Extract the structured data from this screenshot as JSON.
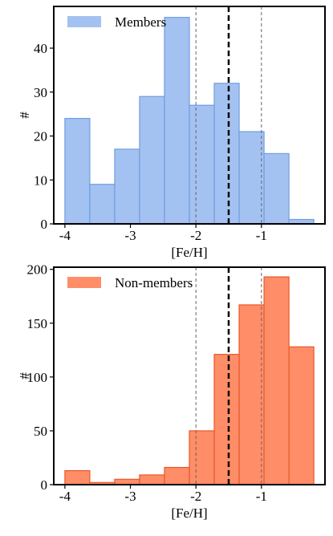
{
  "chart_data": [
    {
      "type": "histogram",
      "xlabel": "[Fe/H]",
      "ylabel": "#",
      "legend": "upper left",
      "bins": [
        -4,
        -3.62,
        -3.24,
        -2.86,
        -2.48,
        -2.1,
        -1.72,
        -1.34,
        -0.96,
        -0.58,
        -0.2
      ],
      "series": [
        {
          "name": "Members",
          "color": "#a4c2f1",
          "edgecolor": "#6f9de0",
          "values": [
            24,
            9,
            17,
            29,
            47,
            27,
            32,
            21,
            16,
            1
          ]
        }
      ],
      "vlines": [
        {
          "x": -2,
          "style": "thin"
        },
        {
          "x": -1.5,
          "style": "thick"
        },
        {
          "x": -1,
          "style": "thin"
        }
      ],
      "xlim": [
        -4.17,
        -0.03
      ],
      "ylim": [
        0,
        49.5
      ],
      "xticks": [
        -4,
        -3,
        -2,
        -1
      ],
      "yticks": [
        0,
        10,
        20,
        30,
        40
      ]
    },
    {
      "type": "histogram",
      "xlabel": "[Fe/H]",
      "ylabel": "#",
      "legend": "upper left",
      "bins": [
        -4,
        -3.62,
        -3.24,
        -2.86,
        -2.48,
        -2.1,
        -1.72,
        -1.34,
        -0.96,
        -0.58,
        -0.2
      ],
      "series": [
        {
          "name": "Non-members",
          "color": "#ff8d68",
          "edgecolor": "#e8582a",
          "values": [
            13,
            2,
            5,
            9,
            16,
            50,
            121,
            167,
            193,
            128
          ]
        }
      ],
      "vlines": [
        {
          "x": -2,
          "style": "thin"
        },
        {
          "x": -1.5,
          "style": "thick"
        },
        {
          "x": -1,
          "style": "thin"
        }
      ],
      "xlim": [
        -4.17,
        -0.03
      ],
      "ylim": [
        0,
        202
      ],
      "xticks": [
        -4,
        -3,
        -2,
        -1
      ],
      "yticks": [
        0,
        50,
        100,
        150,
        200
      ]
    }
  ]
}
